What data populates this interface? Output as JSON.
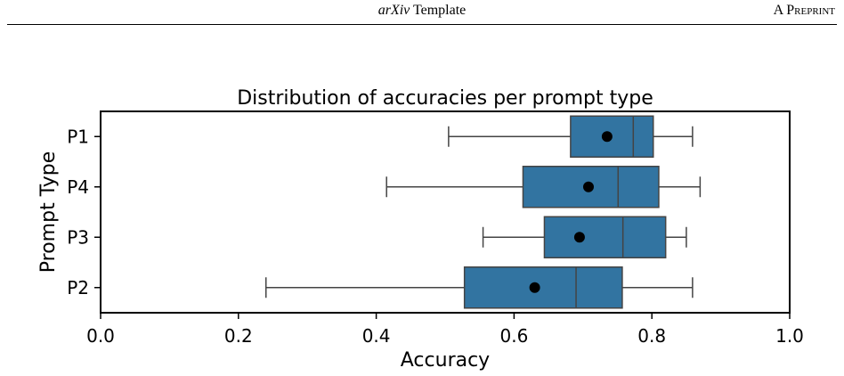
{
  "header": {
    "title_italic": "arXiv",
    "title_rest": " Template",
    "right": "A Preprint"
  },
  "chart_data": {
    "type": "box",
    "orientation": "horizontal",
    "title": "Distribution of accuracies per prompt type",
    "xlabel": "Accuracy",
    "ylabel": "Prompt Type",
    "xlim": [
      0.0,
      1.0
    ],
    "xticks": [
      0.0,
      0.2,
      0.4,
      0.6,
      0.8,
      1.0
    ],
    "xtick_labels": [
      "0.0",
      "0.2",
      "0.4",
      "0.6",
      "0.8",
      "1.0"
    ],
    "grid": false,
    "box_color": "#3274a1",
    "mean_marker_color": "#000000",
    "categories": [
      "P1",
      "P4",
      "P3",
      "P2"
    ],
    "boxes": [
      {
        "category": "P1",
        "whisker_low": 0.505,
        "q1": 0.682,
        "median": 0.773,
        "q3": 0.802,
        "whisker_high": 0.859,
        "mean": 0.735
      },
      {
        "category": "P4",
        "whisker_low": 0.415,
        "q1": 0.613,
        "median": 0.751,
        "q3": 0.81,
        "whisker_high": 0.87,
        "mean": 0.708
      },
      {
        "category": "P3",
        "whisker_low": 0.555,
        "q1": 0.644,
        "median": 0.758,
        "q3": 0.82,
        "whisker_high": 0.85,
        "mean": 0.695
      },
      {
        "category": "P2",
        "whisker_low": 0.24,
        "q1": 0.528,
        "median": 0.69,
        "q3": 0.757,
        "whisker_high": 0.859,
        "mean": 0.63
      }
    ]
  }
}
